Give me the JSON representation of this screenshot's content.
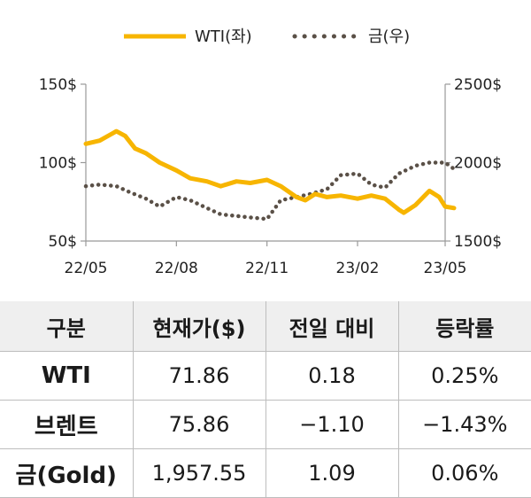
{
  "chart_data": {
    "type": "line",
    "legend": {
      "placement": "top-center",
      "entries": [
        "WTI(좌)",
        "금(우)"
      ]
    },
    "x_tick_labels": [
      "22/05",
      "22/08",
      "22/11",
      "23/02",
      "23/05"
    ],
    "y_left": {
      "ticks": [
        "150$",
        "100$",
        "50$"
      ],
      "range": [
        50,
        150
      ]
    },
    "y_right": {
      "ticks": [
        "2500$",
        "2000$",
        "1500$"
      ],
      "range": [
        1500,
        2500
      ]
    },
    "grid": false,
    "colors": {
      "wti": "#F7B500",
      "gold": "#5A5047"
    },
    "series": [
      {
        "name": "WTI(좌)",
        "axis": "left",
        "style": "solid",
        "x": [
          "2022-05-01",
          "2022-05-15",
          "2022-06-01",
          "2022-06-10",
          "2022-06-20",
          "2022-07-01",
          "2022-07-15",
          "2022-08-01",
          "2022-08-15",
          "2022-09-01",
          "2022-09-15",
          "2022-10-01",
          "2022-10-15",
          "2022-11-01",
          "2022-11-15",
          "2022-12-01",
          "2022-12-10",
          "2022-12-20",
          "2023-01-01",
          "2023-01-15",
          "2023-02-01",
          "2023-02-15",
          "2023-03-01",
          "2023-03-15",
          "2023-03-20",
          "2023-04-01",
          "2023-04-15",
          "2023-04-25",
          "2023-05-01",
          "2023-05-10"
        ],
        "values": [
          112,
          114,
          120,
          117,
          109,
          106,
          100,
          95,
          90,
          88,
          85,
          88,
          87,
          89,
          85,
          78,
          76,
          80,
          78,
          79,
          77,
          79,
          77,
          70,
          68,
          73,
          82,
          78,
          72,
          71
        ]
      },
      {
        "name": "금(우)",
        "axis": "right",
        "style": "dotted",
        "x": [
          "2022-05-01",
          "2022-05-15",
          "2022-06-01",
          "2022-06-15",
          "2022-07-01",
          "2022-07-15",
          "2022-08-01",
          "2022-08-15",
          "2022-09-01",
          "2022-09-15",
          "2022-10-01",
          "2022-10-15",
          "2022-11-01",
          "2022-11-15",
          "2022-12-01",
          "2022-12-15",
          "2023-01-01",
          "2023-01-15",
          "2023-02-01",
          "2023-02-15",
          "2023-03-01",
          "2023-03-15",
          "2023-04-01",
          "2023-04-15",
          "2023-05-01",
          "2023-05-10"
        ],
        "values": [
          1850,
          1860,
          1850,
          1810,
          1770,
          1720,
          1780,
          1760,
          1710,
          1670,
          1660,
          1650,
          1640,
          1760,
          1780,
          1800,
          1830,
          1920,
          1930,
          1860,
          1840,
          1930,
          1980,
          2000,
          2000,
          1960
        ]
      }
    ]
  },
  "table": {
    "headers": [
      "구분",
      "현재가($)",
      "전일 대비",
      "등락률"
    ],
    "rows": [
      {
        "name": "WTI",
        "price": "71.86",
        "change": "0.18",
        "rate": "0.25%"
      },
      {
        "name": "브렌트",
        "price": "75.86",
        "change": "−1.10",
        "rate": "−1.43%"
      },
      {
        "name": "금(Gold)",
        "price": "1,957.55",
        "change": "1.09",
        "rate": "0.06%"
      }
    ]
  }
}
